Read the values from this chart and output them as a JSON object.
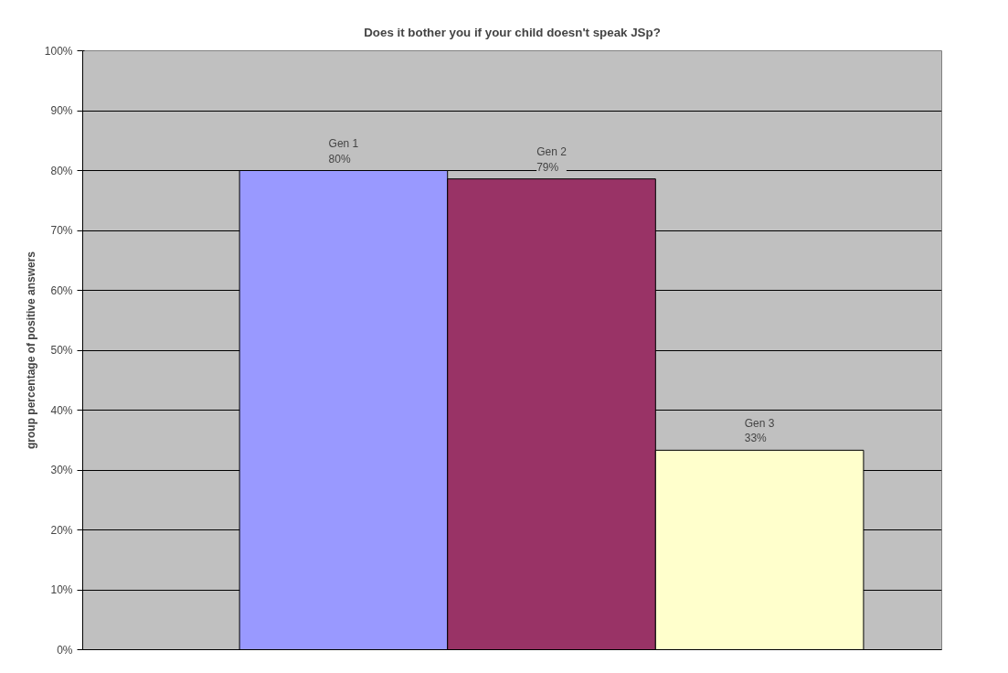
{
  "chart_data": {
    "type": "bar",
    "title": "Does it bother you if your child doesn't speak JSp?",
    "ylabel": "group percentage of positive answers",
    "categories": [
      "Gen 1",
      "Gen 2",
      "Gen 3"
    ],
    "values": [
      80,
      78.6,
      33.3
    ],
    "value_labels": [
      "80%",
      "79%",
      "33%"
    ],
    "colors": [
      "#9999ff",
      "#993366",
      "#ffffcc"
    ],
    "ylim": [
      0,
      100
    ],
    "yticks": [
      {
        "value": 0,
        "label": "0%"
      },
      {
        "value": 10,
        "label": "10%"
      },
      {
        "value": 20,
        "label": "20%"
      },
      {
        "value": 30,
        "label": "30%"
      },
      {
        "value": 40,
        "label": "40%"
      },
      {
        "value": 50,
        "label": "50%"
      },
      {
        "value": 60,
        "label": "60%"
      },
      {
        "value": 70,
        "label": "70%"
      },
      {
        "value": 80,
        "label": "80%"
      },
      {
        "value": 90,
        "label": "90%"
      },
      {
        "value": 100,
        "label": "100%"
      }
    ],
    "grid": "y",
    "tick_labels": "y"
  }
}
